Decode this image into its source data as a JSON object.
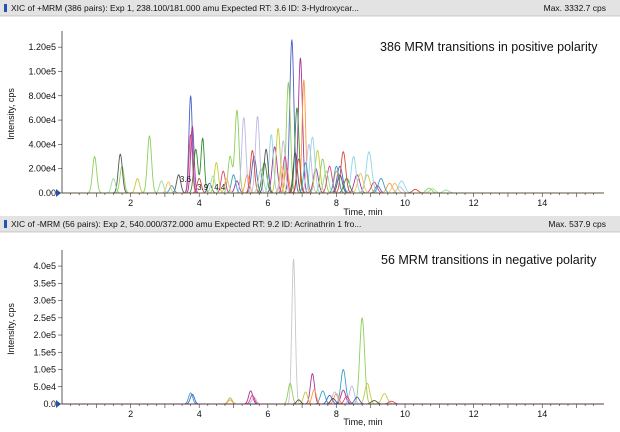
{
  "chart_data": [
    {
      "type": "line",
      "header": "XIC of +MRM (386 pairs): Exp 1, 238.100/181.000 amu Expected RT: 3.6 ID: 3-Hydroxycar...",
      "max_label": "Max. 3332.7 cps",
      "annotation": "386 MRM transitions in positive polarity",
      "xlabel": "Time, min",
      "ylabel": "Intensity, cps",
      "xlim": [
        0,
        15.8
      ],
      "ylim": [
        0,
        130000.0
      ],
      "x_ticks": [
        2,
        4,
        6,
        8,
        10,
        12,
        14
      ],
      "y_ticks": [
        {
          "v": 0,
          "label": "0.00"
        },
        {
          "v": 20000,
          "label": "2.00e4"
        },
        {
          "v": 40000,
          "label": "4.00e4"
        },
        {
          "v": 60000,
          "label": "6.00e4"
        },
        {
          "v": 80000,
          "label": "8.00e4"
        },
        {
          "v": 100000,
          "label": "1.00e5"
        },
        {
          "v": 120000,
          "label": "1.20e5"
        }
      ],
      "peak_labels": [
        {
          "x": 3.6,
          "y": 9000,
          "label": "3.6"
        },
        {
          "x": 4.1,
          "y": 2500,
          "label": "3.9"
        },
        {
          "x": 4.6,
          "y": 2500,
          "label": "4.4"
        }
      ],
      "series": [
        {
          "color": "#4a63c4",
          "peaks": [
            [
              3.75,
              80000,
              0.05
            ],
            [
              6.7,
              126000,
              0.06
            ],
            [
              5.6,
              30000,
              0.07
            ],
            [
              8.1,
              22000,
              0.08
            ],
            [
              4.3,
              8000,
              0.06
            ],
            [
              9.2,
              6000,
              0.07
            ]
          ]
        },
        {
          "color": "#a8339a",
          "peaks": [
            [
              6.95,
              111000,
              0.06
            ],
            [
              3.8,
              55000,
              0.05
            ],
            [
              6.2,
              38000,
              0.07
            ],
            [
              7.4,
              20000,
              0.07
            ],
            [
              8.6,
              15000,
              0.08
            ],
            [
              5.1,
              10000,
              0.06
            ]
          ]
        },
        {
          "color": "#8fcf5a",
          "peaks": [
            [
              6.6,
              91000,
              0.06
            ],
            [
              5.1,
              68000,
              0.06
            ],
            [
              0.95,
              30000,
              0.06
            ],
            [
              1.75,
              22000,
              0.06
            ],
            [
              2.55,
              47000,
              0.06
            ],
            [
              4.9,
              30000,
              0.06
            ],
            [
              7.6,
              28000,
              0.07
            ],
            [
              10.7,
              4000,
              0.08
            ]
          ]
        },
        {
          "color": "#ff9a3c",
          "peaks": [
            [
              7.05,
              93000,
              0.05
            ],
            [
              6.55,
              20000,
              0.06
            ],
            [
              5.4,
              15000,
              0.06
            ],
            [
              8.0,
              18000,
              0.07
            ],
            [
              9.55,
              8000,
              0.08
            ]
          ]
        },
        {
          "color": "#2f8f2f",
          "peaks": [
            [
              6.85,
              70000,
              0.06
            ],
            [
              3.9,
              36000,
              0.06
            ],
            [
              4.1,
              45000,
              0.05
            ],
            [
              5.9,
              25000,
              0.07
            ],
            [
              8.3,
              12000,
              0.08
            ]
          ]
        },
        {
          "color": "#bdb8e8",
          "peaks": [
            [
              6.45,
              43000,
              0.06
            ],
            [
              5.3,
              62000,
              0.06
            ],
            [
              5.7,
              63000,
              0.06
            ],
            [
              7.2,
              40000,
              0.07
            ],
            [
              9.85,
              5000,
              0.08
            ]
          ]
        },
        {
          "color": "#c7c93a",
          "peaks": [
            [
              6.3,
              53000,
              0.06
            ],
            [
              4.5,
              25000,
              0.06
            ],
            [
              7.45,
              35000,
              0.07
            ],
            [
              8.9,
              15000,
              0.08
            ],
            [
              2.2,
              12000,
              0.06
            ]
          ]
        },
        {
          "color": "#e33f7a",
          "peaks": [
            [
              3.75,
              48000,
              0.05
            ],
            [
              6.5,
              30000,
              0.06
            ],
            [
              4.7,
              18000,
              0.06
            ],
            [
              7.8,
              22000,
              0.07
            ],
            [
              9.1,
              9000,
              0.08
            ]
          ]
        },
        {
          "color": "#8fd6e8",
          "peaks": [
            [
              8.5,
              30000,
              0.07
            ],
            [
              7.3,
              46000,
              0.07
            ],
            [
              6.1,
              48000,
              0.06
            ],
            [
              8.95,
              34000,
              0.08
            ],
            [
              9.9,
              10000,
              0.09
            ]
          ]
        },
        {
          "color": "#555555",
          "peaks": [
            [
              1.7,
              32000,
              0.06
            ],
            [
              5.95,
              36000,
              0.06
            ],
            [
              6.8,
              33000,
              0.06
            ],
            [
              3.4,
              15000,
              0.06
            ],
            [
              8.1,
              15000,
              0.07
            ]
          ]
        },
        {
          "color": "#d94a3a",
          "peaks": [
            [
              5.55,
              35000,
              0.06
            ],
            [
              8.2,
              34000,
              0.07
            ],
            [
              6.9,
              28000,
              0.06
            ],
            [
              4.0,
              12000,
              0.06
            ],
            [
              10.3,
              3000,
              0.08
            ]
          ]
        },
        {
          "color": "#3aa0c8",
          "peaks": [
            [
              8.0,
              22000,
              0.07
            ],
            [
              7.1,
              25000,
              0.06
            ],
            [
              5.0,
              15000,
              0.06
            ],
            [
              9.3,
              12000,
              0.08
            ],
            [
              3.2,
              6000,
              0.06
            ]
          ]
        },
        {
          "color": "#9adf9a",
          "peaks": [
            [
              1.5,
              12000,
              0.06
            ],
            [
              2.9,
              10000,
              0.06
            ],
            [
              4.4,
              14000,
              0.06
            ],
            [
              5.8,
              20000,
              0.07
            ],
            [
              7.7,
              18000,
              0.07
            ],
            [
              10.8,
              3500,
              0.08
            ],
            [
              11.2,
              2500,
              0.08
            ]
          ]
        },
        {
          "color": "#f0c060",
          "peaks": [
            [
              3.1,
              9000,
              0.06
            ],
            [
              4.8,
              12000,
              0.06
            ],
            [
              6.4,
              22000,
              0.06
            ],
            [
              8.7,
              16000,
              0.08
            ],
            [
              9.7,
              8000,
              0.08
            ]
          ]
        }
      ]
    },
    {
      "type": "line",
      "header": "XIC of -MRM (56 pairs): Exp 2, 540.000/372.000 amu Expected RT: 9.2 ID: Acrinathrin 1 fro...",
      "max_label": "Max. 537.9 cps",
      "annotation": "56 MRM transitions in negative polarity",
      "xlabel": "Time, min",
      "ylabel": "Intensity, cps",
      "xlim": [
        0,
        15.8
      ],
      "ylim": [
        0,
        435000.0
      ],
      "x_ticks": [
        2,
        4,
        6,
        8,
        10,
        12,
        14
      ],
      "y_ticks": [
        {
          "v": 0,
          "label": "0.0"
        },
        {
          "v": 50000,
          "label": "5.0e4"
        },
        {
          "v": 100000,
          "label": "1.0e5"
        },
        {
          "v": 150000,
          "label": "1.5e5"
        },
        {
          "v": 200000,
          "label": "2.0e5"
        },
        {
          "v": 250000,
          "label": "2.5e5"
        },
        {
          "v": 300000,
          "label": "3.0e5"
        },
        {
          "v": 350000,
          "label": "3.5e5"
        },
        {
          "v": 400000,
          "label": "4.0e5"
        }
      ],
      "peak_labels": [],
      "series": [
        {
          "color": "#c8c8c8",
          "peaks": [
            [
              6.75,
              420000,
              0.05
            ]
          ]
        },
        {
          "color": "#8fcf5a",
          "peaks": [
            [
              8.75,
              250000,
              0.07
            ],
            [
              6.65,
              60000,
              0.06
            ],
            [
              4.9,
              18000,
              0.06
            ]
          ]
        },
        {
          "color": "#a8339a",
          "peaks": [
            [
              7.3,
              88000,
              0.06
            ],
            [
              5.5,
              38000,
              0.06
            ],
            [
              8.2,
              40000,
              0.07
            ]
          ]
        },
        {
          "color": "#3aa0c8",
          "peaks": [
            [
              8.2,
              100000,
              0.07
            ],
            [
              3.75,
              32000,
              0.06
            ],
            [
              7.6,
              38000,
              0.07
            ]
          ]
        },
        {
          "color": "#c7c93a",
          "peaks": [
            [
              8.9,
              60000,
              0.07
            ],
            [
              7.1,
              35000,
              0.06
            ],
            [
              9.4,
              30000,
              0.08
            ]
          ]
        },
        {
          "color": "#bdb8e8",
          "peaks": [
            [
              8.45,
              52000,
              0.07
            ],
            [
              7.95,
              35000,
              0.07
            ],
            [
              5.6,
              20000,
              0.06
            ]
          ]
        },
        {
          "color": "#ff9a3c",
          "peaks": [
            [
              7.35,
              42000,
              0.06
            ],
            [
              8.0,
              30000,
              0.07
            ],
            [
              4.9,
              12000,
              0.06
            ]
          ]
        },
        {
          "color": "#4a63c4",
          "peaks": [
            [
              3.8,
              28000,
              0.06
            ],
            [
              7.8,
              25000,
              0.07
            ],
            [
              8.6,
              20000,
              0.07
            ]
          ]
        },
        {
          "color": "#555555",
          "peaks": [
            [
              7.9,
              16000,
              0.07
            ],
            [
              6.9,
              12000,
              0.06
            ],
            [
              9.1,
              10000,
              0.08
            ]
          ]
        },
        {
          "color": "#e33f7a",
          "peaks": [
            [
              5.55,
              25000,
              0.06
            ],
            [
              8.3,
              22000,
              0.07
            ],
            [
              9.6,
              8000,
              0.08
            ]
          ]
        }
      ]
    }
  ]
}
